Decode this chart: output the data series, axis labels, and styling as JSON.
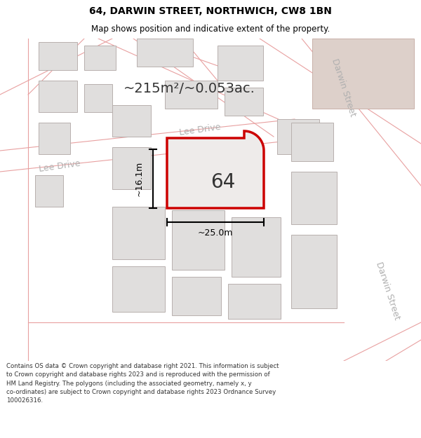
{
  "title_line1": "64, DARWIN STREET, NORTHWICH, CW8 1BN",
  "title_line2": "Map shows position and indicative extent of the property.",
  "footer_text": "Contains OS data © Crown copyright and database right 2021. This information is subject to Crown copyright and database rights 2023 and is reproduced with the permission of HM Land Registry. The polygons (including the associated geometry, namely x, y co-ordinates) are subject to Crown copyright and database rights 2023 Ordnance Survey 100026316.",
  "area_label": "~215m²/~0.053ac.",
  "number_label": "64",
  "dim_width": "~25.0m",
  "dim_height": "~16.1m",
  "map_bg": "#ffffff",
  "road_outline_color": "#e8a0a0",
  "building_outline_color": "#b0b0b0",
  "building_fill_color": "#e0dedd",
  "plot_outline_color": "#cc0000",
  "plot_fill_color": "#eeebea",
  "tan_block_color": "#ddd0ca",
  "tan_block_outline": "#c8b0a8",
  "street_label_color": "#b0b0b0",
  "dim_color": "#000000",
  "title_color": "#000000",
  "footer_color": "#333333",
  "title_fontsize": 10,
  "subtitle_fontsize": 8.5,
  "area_fontsize": 14,
  "number_fontsize": 20,
  "dim_fontsize": 9,
  "street_fontsize": 9,
  "footer_fontsize": 6.2
}
